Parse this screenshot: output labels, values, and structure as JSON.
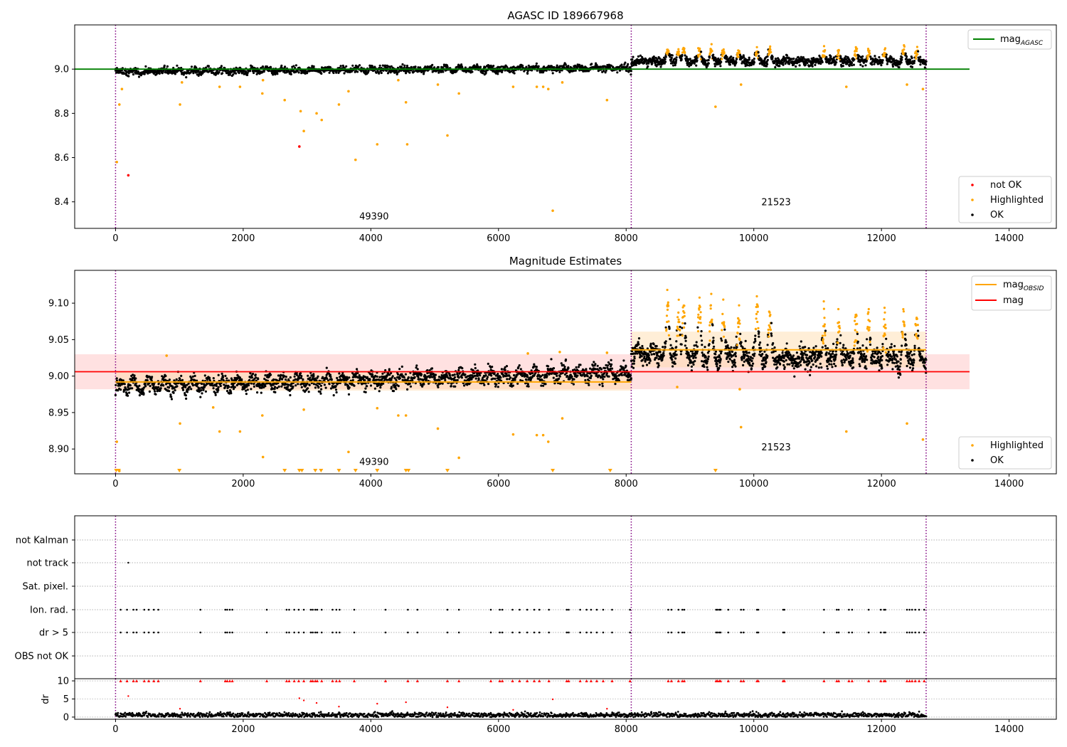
{
  "figure": {
    "background": "#ffffff"
  },
  "colors": {
    "ok": "#000000",
    "highlighted": "#ffa500",
    "not_ok": "#ff0000",
    "agasc_line": "#008000",
    "mag_line": "#ff0000",
    "obsid_line": "#ffa500",
    "obs_boundary": "#800080",
    "mag_band": "#ffb3b3",
    "obsid_band": "#ffd9a6",
    "grid": "#b0b0b0"
  },
  "chart_data": [
    {
      "id": "top",
      "type": "scatter",
      "title": "AGASC ID 189667968",
      "xlim": [
        -640,
        14740
      ],
      "ylim": [
        8.28,
        9.2
      ],
      "x_ticks": [
        0,
        2000,
        4000,
        6000,
        8000,
        10000,
        12000,
        14000
      ],
      "y_ticks": [
        8.4,
        8.6,
        8.8,
        9.0
      ],
      "y_tick_labels": [
        "8.4",
        "8.6",
        "8.8",
        "9.0"
      ],
      "obs_boundaries": [
        0,
        8080,
        12700
      ],
      "obs_labels": [
        {
          "text": "49390",
          "x": 4050,
          "y": 8.32
        },
        {
          "text": "21523",
          "x": 10350,
          "y": 8.385
        }
      ],
      "hlines": [
        {
          "name": "mag_AGASC",
          "y": 9.0,
          "x0": -640,
          "x1": 13380,
          "color_key": "agasc_line"
        }
      ],
      "obs_segments": [
        {
          "x0": 0,
          "x1": 8080,
          "mag_start": 8.99,
          "mag_end": 9.005,
          "spread": 0.018
        },
        {
          "x0": 8080,
          "x1": 12700,
          "mag_start": 9.035,
          "mag_end": 9.035,
          "spread": 0.022
        }
      ],
      "flares": [
        8650,
        8820,
        8900,
        9150,
        9330,
        9520,
        9760,
        10050,
        10250,
        11100,
        11330,
        11600,
        11800,
        12050,
        12350,
        12550
      ],
      "highlight_outliers": [
        [
          20,
          8.58
        ],
        [
          60,
          8.84
        ],
        [
          100,
          8.91
        ],
        [
          1010,
          8.84
        ],
        [
          1040,
          8.94
        ],
        [
          1630,
          8.92
        ],
        [
          1950,
          8.92
        ],
        [
          2300,
          8.89
        ],
        [
          2310,
          8.95
        ],
        [
          2650,
          8.86
        ],
        [
          2900,
          8.81
        ],
        [
          2950,
          8.72
        ],
        [
          3150,
          8.8
        ],
        [
          3230,
          8.77
        ],
        [
          3500,
          8.84
        ],
        [
          3650,
          8.9
        ],
        [
          3760,
          8.59
        ],
        [
          4100,
          8.66
        ],
        [
          4430,
          8.95
        ],
        [
          4550,
          8.85
        ],
        [
          4570,
          8.66
        ],
        [
          5050,
          8.93
        ],
        [
          5200,
          8.7
        ],
        [
          5380,
          8.89
        ],
        [
          6230,
          8.92
        ],
        [
          6600,
          8.92
        ],
        [
          6700,
          8.92
        ],
        [
          6780,
          8.91
        ],
        [
          6850,
          8.36
        ],
        [
          7000,
          8.94
        ],
        [
          7700,
          8.86
        ],
        [
          9400,
          8.83
        ],
        [
          9800,
          8.93
        ],
        [
          11450,
          8.92
        ],
        [
          12400,
          8.93
        ],
        [
          12650,
          8.91
        ]
      ],
      "not_ok_points": [
        [
          200,
          8.52
        ],
        [
          2880,
          8.65
        ]
      ],
      "legends": [
        {
          "position": "upper right",
          "entries": [
            {
              "label": "mag",
              "sub": "AGASC",
              "marker": "line",
              "color_key": "agasc_line"
            }
          ]
        },
        {
          "position": "lower right",
          "entries": [
            {
              "label": "not OK",
              "marker": "dot",
              "color_key": "not_ok"
            },
            {
              "label": "Highlighted",
              "marker": "dot",
              "color_key": "highlighted"
            },
            {
              "label": "OK",
              "marker": "dot",
              "color_key": "ok"
            }
          ]
        }
      ]
    },
    {
      "id": "middle",
      "type": "scatter",
      "title": "Magnitude Estimates",
      "xlim": [
        -640,
        14740
      ],
      "ylim": [
        8.866,
        9.145
      ],
      "x_ticks": [
        0,
        2000,
        4000,
        6000,
        8000,
        10000,
        12000,
        14000
      ],
      "y_ticks": [
        8.9,
        8.95,
        9.0,
        9.05,
        9.1
      ],
      "y_tick_labels": [
        "8.90",
        "8.95",
        "9.00",
        "9.05",
        "9.10"
      ],
      "obs_boundaries": [
        0,
        8080,
        12700
      ],
      "obs_labels": [
        {
          "text": "49390",
          "x": 4050,
          "y": 8.878
        },
        {
          "text": "21523",
          "x": 10350,
          "y": 8.898
        }
      ],
      "mag": {
        "value": 9.006,
        "band": [
          8.982,
          9.03
        ],
        "x0": -640,
        "x1": 13380
      },
      "mag_obsid": [
        {
          "x0": 0,
          "x1": 8080,
          "value": 8.992,
          "band": [
            8.98,
            9.005
          ]
        },
        {
          "x0": 8080,
          "x1": 12700,
          "value": 9.036,
          "band": [
            9.012,
            9.061
          ]
        }
      ],
      "obs_segments": [
        {
          "x0": 0,
          "x1": 8080,
          "mag_start": 8.985,
          "mag_end": 9.005,
          "spread": 0.012
        },
        {
          "x0": 8080,
          "x1": 12700,
          "mag_start": 9.03,
          "mag_end": 9.02,
          "spread": 0.016
        }
      ],
      "flares": [
        8650,
        8820,
        8900,
        9150,
        9330,
        9520,
        9760,
        10050,
        10250,
        11100,
        11330,
        11600,
        11800,
        12050,
        12350,
        12550
      ],
      "highlight_outliers": [
        [
          20,
          8.91
        ],
        [
          60,
          8.87
        ],
        [
          800,
          9.028
        ],
        [
          1010,
          8.935
        ],
        [
          1530,
          8.957
        ],
        [
          1630,
          8.924
        ],
        [
          1950,
          8.924
        ],
        [
          2300,
          8.946
        ],
        [
          2310,
          8.889
        ],
        [
          2950,
          8.954
        ],
        [
          3650,
          8.896
        ],
        [
          4100,
          8.956
        ],
        [
          4430,
          8.946
        ],
        [
          4550,
          8.946
        ],
        [
          5050,
          8.928
        ],
        [
          5380,
          8.888
        ],
        [
          6230,
          8.92
        ],
        [
          6460,
          9.031
        ],
        [
          6600,
          8.919
        ],
        [
          6700,
          8.919
        ],
        [
          6780,
          8.91
        ],
        [
          6960,
          9.033
        ],
        [
          7000,
          8.942
        ],
        [
          7700,
          9.032
        ],
        [
          8800,
          8.985
        ],
        [
          9800,
          8.93
        ],
        [
          9780,
          8.982
        ],
        [
          11450,
          8.924
        ],
        [
          12400,
          8.935
        ],
        [
          12650,
          8.913
        ]
      ],
      "lower_limit_markers": [
        10,
        50,
        1000,
        2650,
        2880,
        2920,
        3130,
        3220,
        3500,
        3760,
        4100,
        4550,
        4590,
        5200,
        6850,
        7750,
        9400
      ],
      "legends": [
        {
          "position": "upper right",
          "entries": [
            {
              "label": "mag",
              "sub": "OBSID",
              "marker": "line",
              "color_key": "obsid_line"
            },
            {
              "label": "mag",
              "marker": "line",
              "color_key": "mag_line"
            }
          ]
        },
        {
          "position": "lower right",
          "entries": [
            {
              "label": "Highlighted",
              "marker": "dot",
              "color_key": "highlighted"
            },
            {
              "label": "OK",
              "marker": "dot",
              "color_key": "ok"
            }
          ]
        }
      ]
    },
    {
      "id": "flags",
      "type": "scatter",
      "xlim": [
        -640,
        14740
      ],
      "categories": [
        "not Kalman",
        "not track",
        "Sat. pixel.",
        "Ion. rad.",
        "dr > 5",
        "OBS not OK"
      ],
      "obs_boundaries": [
        0,
        8080,
        12700
      ],
      "not_track_times": [
        200
      ],
      "flag_times": [
        80,
        180,
        280,
        330,
        450,
        520,
        600,
        670,
        1330,
        1720,
        1750,
        1790,
        1830,
        2370,
        2680,
        2720,
        2800,
        2870,
        2950,
        3060,
        3090,
        3130,
        3160,
        3230,
        3400,
        3460,
        3510,
        3740,
        4230,
        4580,
        4730,
        5200,
        5380,
        5880,
        6020,
        6060,
        6220,
        6330,
        6450,
        6560,
        6640,
        6790,
        7070,
        7100,
        7280,
        7380,
        7450,
        7540,
        7640,
        7780,
        8060,
        8660,
        8710,
        8820,
        8880,
        8910,
        9410,
        9430,
        9460,
        9480,
        9600,
        9800,
        9840,
        10050,
        10070,
        10460,
        10480,
        11100,
        11300,
        11330,
        11490,
        11540,
        11800,
        11990,
        12040,
        12060,
        12400,
        12440,
        12480,
        12530,
        12590,
        12670
      ]
    },
    {
      "id": "dr",
      "type": "scatter",
      "ylabel": "dr",
      "xlim": [
        -640,
        14740
      ],
      "ylim": [
        -0.6,
        10.6
      ],
      "x_ticks": [
        0,
        2000,
        4000,
        6000,
        8000,
        10000,
        12000,
        14000
      ],
      "y_ticks": [
        0,
        5,
        10
      ],
      "y_tick_labels": [
        "0",
        "5",
        "10"
      ],
      "obs_boundaries": [
        0,
        8080,
        12700
      ],
      "capped_value": 10,
      "mid_outliers": [
        [
          200,
          5.8
        ],
        [
          2880,
          5.2
        ],
        [
          2950,
          4.6
        ],
        [
          3150,
          3.9
        ],
        [
          3500,
          2.9
        ],
        [
          4100,
          3.7
        ],
        [
          4550,
          4.1
        ],
        [
          5200,
          2.7
        ],
        [
          6850,
          4.9
        ],
        [
          7700,
          2.3
        ],
        [
          1010,
          2.3
        ],
        [
          6230,
          2.0
        ]
      ]
    }
  ]
}
